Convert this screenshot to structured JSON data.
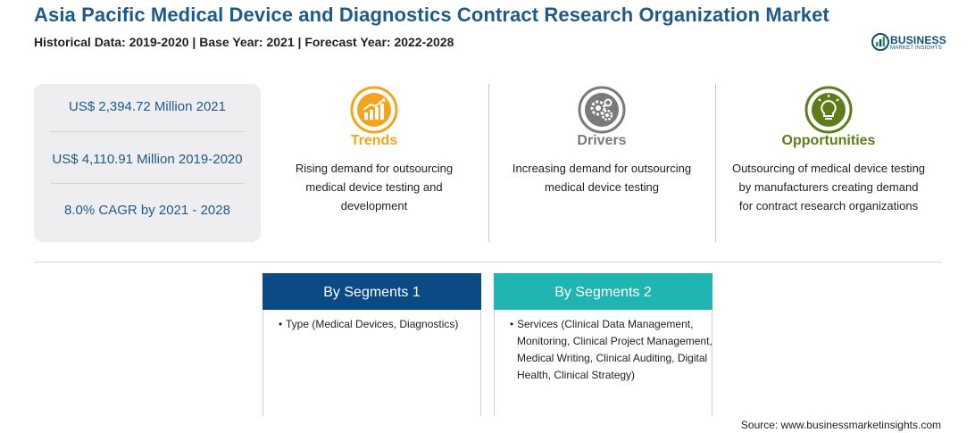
{
  "header": {
    "title": "Asia Pacific Medical Device and Diagnostics Contract Research Organization Market",
    "subtitle": "Historical Data: 2019-2020 | Base Year: 2021 | Forecast Year: 2022-2028"
  },
  "logo": {
    "word": "BUSINESS",
    "tagline": "MARKET INSIGHTS",
    "color": "#0f4e7a",
    "icon": "logo-mark-icon"
  },
  "stats": [
    {
      "text": "US$ 2,394.72 Million 2021"
    },
    {
      "text": "US$ 4,110.91 Million 2019-2020"
    },
    {
      "text": "8.0% CAGR by 2021 - 2028"
    }
  ],
  "columns": [
    {
      "heading": "Trends",
      "color": "#f3a51d",
      "icon": "trend-chart-icon",
      "text": "Rising demand for outsourcing medical device testing and development"
    },
    {
      "heading": "Drivers",
      "color": "#7a7a7a",
      "icon": "gears-icon",
      "text": "Increasing demand for outsourcing medical device testing"
    },
    {
      "heading": "Opportunities",
      "color": "#5f7c1b",
      "icon": "lightbulb-icon",
      "text": "Outsourcing of medical device testing by manufacturers creating demand for contract research organizations"
    }
  ],
  "segments": [
    {
      "heading": "By Segments 1",
      "color": "#0c4a85",
      "bullet": "•",
      "item": "Type (Medical Devices, Diagnostics)"
    },
    {
      "heading": "By Segments 2",
      "color": "#20b5b0",
      "bullet": "•",
      "item": "Services (Clinical Data Management, Monitoring, Clinical Project Management, Medical Writing, Clinical Auditing, Digital Health, Clinical Strategy)"
    }
  ],
  "footer": {
    "source": "Source: www.businessmarketinsights.com"
  }
}
